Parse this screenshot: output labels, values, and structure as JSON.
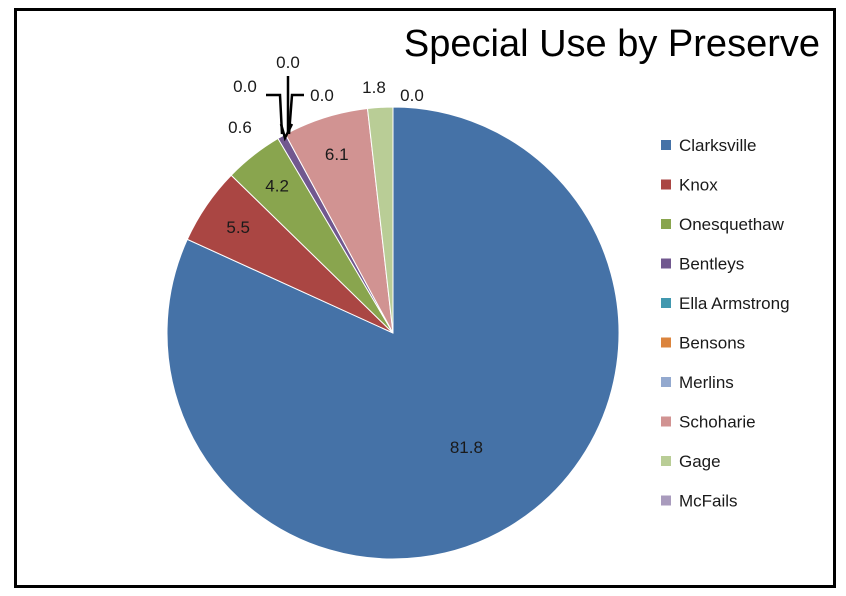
{
  "chart_data": {
    "type": "pie",
    "title": "Special Use by Preserve",
    "legend_position": "right",
    "slices": [
      {
        "name": "Clarksville",
        "value": 81.8,
        "label": "81.8",
        "color": "#4572A7"
      },
      {
        "name": "Knox",
        "value": 5.5,
        "label": "5.5",
        "color": "#AA4643"
      },
      {
        "name": "Onesquethaw",
        "value": 4.2,
        "label": "4.2",
        "color": "#89A54E"
      },
      {
        "name": "Bentleys",
        "value": 0.6,
        "label": "0.6",
        "color": "#71588F"
      },
      {
        "name": "Ella Armstrong",
        "value": 0.0,
        "label": "0.0",
        "color": "#4198AF"
      },
      {
        "name": "Bensons",
        "value": 0.0,
        "label": "0.0",
        "color": "#DB843D"
      },
      {
        "name": "Merlins",
        "value": 0.0,
        "label": "0.0",
        "color": "#93A9CF"
      },
      {
        "name": "Schoharie",
        "value": 6.1,
        "label": "6.1",
        "color": "#D19392"
      },
      {
        "name": "Gage",
        "value": 1.8,
        "label": "1.8",
        "color": "#B9CD96"
      },
      {
        "name": "McFails",
        "value": 0.0,
        "label": "0.0",
        "color": "#A99BBD"
      }
    ]
  }
}
